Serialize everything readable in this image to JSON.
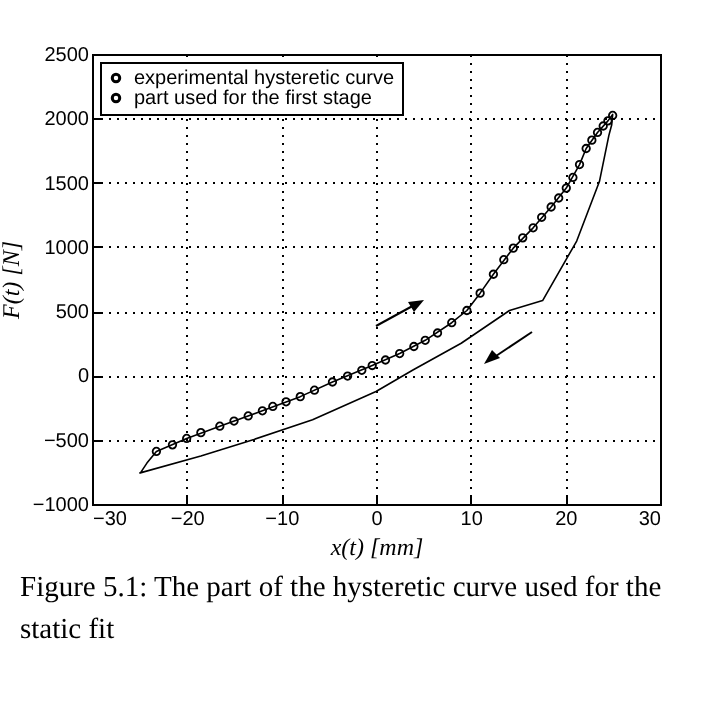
{
  "chart_data": {
    "type": "line",
    "xlabel": "x(t) [mm]",
    "ylabel": "F(t) [N]",
    "xlim": [
      -30,
      30
    ],
    "xticks": [
      -30,
      -20,
      -10,
      0,
      10,
      20,
      30
    ],
    "ylim": [
      -1000,
      2500
    ],
    "yticks": [
      -1000,
      -500,
      0,
      500,
      1000,
      1500,
      2000,
      2500
    ],
    "grid": true,
    "legend": "top left",
    "annotations": [
      "Figure 5.1: The part of the hysteretic curve used for the static fit"
    ],
    "series": [
      {
        "name": "experimental hysteretic curve",
        "type": "line",
        "color": "#000000",
        "x": [
          -24.9,
          -24.2,
          -23.2,
          -20,
          -16.5,
          -12,
          -8,
          -4.6,
          -0.4,
          2.5,
          5.2,
          8,
          9.6,
          11,
          12.4,
          14.5,
          16.6,
          18.5,
          20.1,
          21.5,
          22.2,
          23.4,
          24.5,
          25,
          24.9,
          24.6,
          23.6,
          21.2,
          17.6,
          14.1,
          9,
          3.9,
          0,
          -6.7,
          -12.9,
          -18.5,
          -25
        ],
        "values": [
          -760,
          -682,
          -591,
          -490,
          -395,
          -275,
          -165,
          -51,
          77,
          170,
          273,
          410,
          505,
          640,
          787,
          990,
          1148,
          1310,
          1457,
          1640,
          1765,
          1890,
          1980,
          2030,
          1950,
          1867,
          1508,
          1045,
          582,
          505,
          250,
          42,
          -125,
          -344,
          -498,
          -627,
          -760
        ]
      },
      {
        "name": "part used for the first stage",
        "type": "scatter",
        "marker": "circle",
        "color": "#000000",
        "x": [
          -23.2,
          -21.5,
          -20,
          -18.5,
          -16.5,
          -15,
          -13.5,
          -12,
          -10.9,
          -9.5,
          -8,
          -6.5,
          -4.6,
          -3,
          -1.5,
          -0.4,
          1,
          2.5,
          4,
          5.2,
          6.5,
          8,
          9.6,
          11,
          12.4,
          13.5,
          14.5,
          15.5,
          16.6,
          17.5,
          18.5,
          19.3,
          20.1,
          20.8,
          21.5,
          22.2,
          22.8,
          23.4,
          24,
          24.5,
          25
        ],
        "values": [
          -591,
          -540,
          -490,
          -445,
          -395,
          -355,
          -315,
          -275,
          -241,
          -205,
          -165,
          -115,
          -51,
          -5,
          40,
          77,
          120,
          170,
          225,
          273,
          330,
          410,
          505,
          640,
          787,
          900,
          990,
          1070,
          1148,
          1230,
          1310,
          1380,
          1457,
          1540,
          1640,
          1765,
          1830,
          1890,
          1940,
          1980,
          2022
        ]
      }
    ]
  }
}
